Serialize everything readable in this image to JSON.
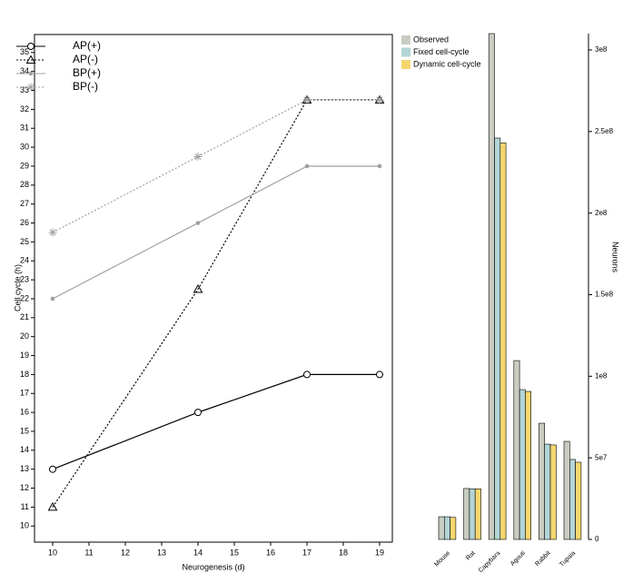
{
  "chart_data": [
    {
      "type": "line",
      "xlabel": "Neurogenesis (d)",
      "ylabel": "Cell cycle (h)",
      "x": [
        10,
        14,
        17,
        19
      ],
      "series": [
        {
          "name": "AP(+)",
          "color": "#000000",
          "marker": "circle",
          "dashed": false,
          "values": [
            13,
            16,
            18,
            18
          ]
        },
        {
          "name": "AP(-)",
          "color": "#000000",
          "marker": "triangle",
          "dashed": true,
          "values": [
            11,
            22.5,
            32.5,
            32.5
          ]
        },
        {
          "name": "BP(+)",
          "color": "#a0a0a0",
          "marker": "dot",
          "dashed": false,
          "values": [
            22,
            26,
            29,
            29
          ]
        },
        {
          "name": "BP(-)",
          "color": "#a0a0a0",
          "marker": "asterisk",
          "dashed": true,
          "values": [
            25.5,
            29.5,
            32.5,
            32.5
          ]
        }
      ],
      "xlim": [
        9.5,
        19.35
      ],
      "xticks": [
        10,
        11,
        12,
        13,
        14,
        15,
        16,
        17,
        18,
        19
      ],
      "ylim": [
        9.15,
        35.95
      ],
      "yticks": [
        10,
        11,
        12,
        13,
        14,
        15,
        16,
        17,
        18,
        19,
        20,
        21,
        22,
        23,
        24,
        25,
        26,
        27,
        28,
        29,
        30,
        31,
        32,
        33,
        34,
        35
      ],
      "legend": "upper left"
    },
    {
      "type": "bar",
      "ylabel": "Neurons",
      "categories": [
        "Mouse",
        "Rat",
        "Capybara",
        "Agouti",
        "Rabbit",
        "Tupaia"
      ],
      "series": [
        {
          "name": "Observed",
          "color": "#c9ccc0",
          "values": [
            13900000,
            31200000,
            310000000,
            109600000,
            71200000,
            60100000
          ]
        },
        {
          "name": "Fixed cell-cycle",
          "color": "#b3d5d5",
          "values": [
            13900000,
            31000000,
            246000000,
            91800000,
            58400000,
            49000000
          ]
        },
        {
          "name": "Dynamic cell-cycle",
          "color": "#f5d66e",
          "values": [
            13500000,
            31000000,
            243000000,
            90700000,
            57900000,
            47300000
          ]
        }
      ],
      "ylim": [
        0,
        310000000
      ],
      "yticks": [
        0,
        {
          "value": 50000000,
          "label": "5e7"
        },
        {
          "value": 100000000,
          "label": "1e8"
        },
        {
          "value": 150000000,
          "label": "1.5e8"
        },
        {
          "value": 200000000,
          "label": "2e8"
        },
        {
          "value": 250000000,
          "label": "2.5e8"
        },
        {
          "value": 300000000,
          "label": "3e8"
        }
      ],
      "legend": "upper left"
    }
  ]
}
